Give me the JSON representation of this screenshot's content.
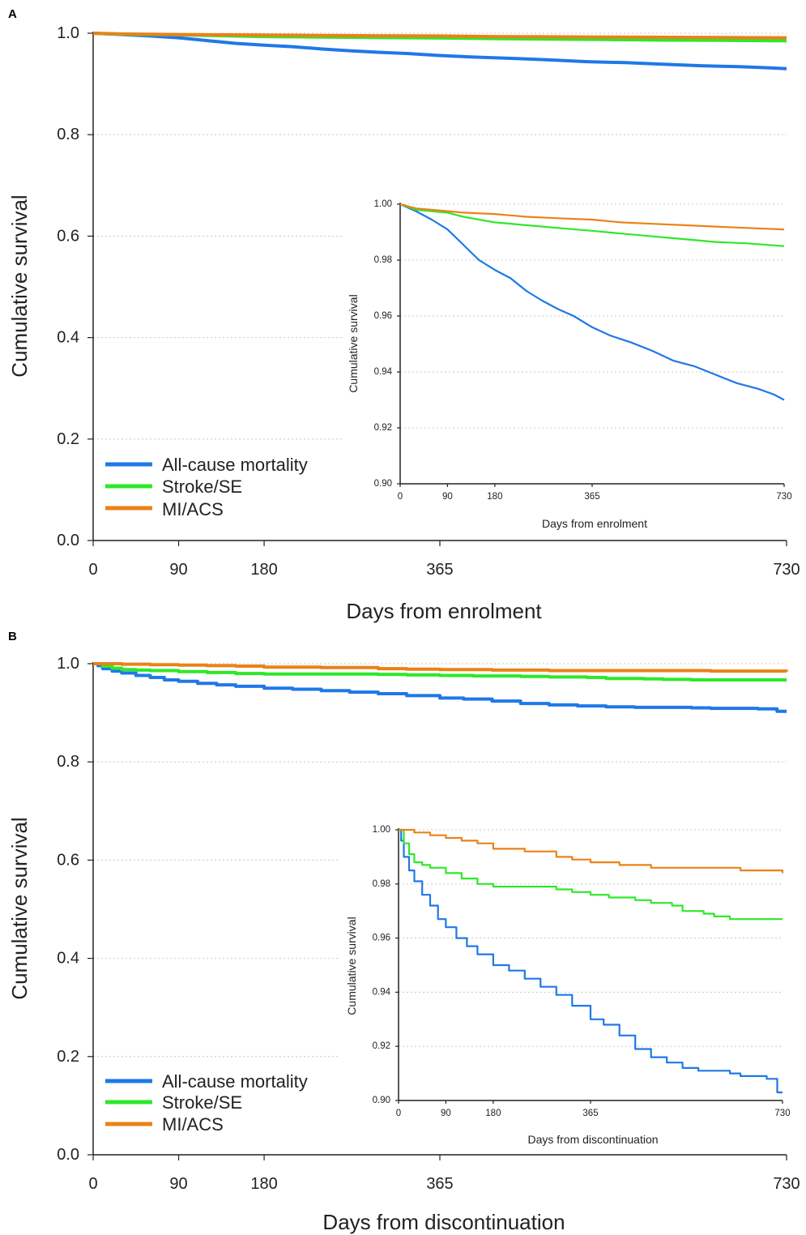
{
  "colors": {
    "all_cause_mortality": "#1f78e8",
    "stroke_se": "#2ee82a",
    "mi_acs": "#ea8218",
    "grid": "#c8c8c8",
    "axis": "#222222"
  },
  "chart_data": [
    {
      "panel": "A",
      "type": "line",
      "xlabel": "Days from enrolment",
      "ylabel": "Cumulative survival",
      "xticks": [
        0,
        90,
        180,
        365,
        730
      ],
      "yticks": [
        "0.0",
        "0.2",
        "0.4",
        "0.6",
        "0.8",
        "1.0"
      ],
      "xlim": [
        0,
        730
      ],
      "ylim": [
        0,
        1
      ],
      "grid": "horizontal dotted",
      "legend_position": "bottom-left",
      "legend": [
        "All-cause mortality",
        "Stroke/SE",
        "MI/ACS"
      ],
      "series": [
        {
          "name": "All-cause mortality",
          "x": [
            0,
            30,
            60,
            90,
            120,
            150,
            180,
            210,
            240,
            270,
            300,
            330,
            365,
            400,
            440,
            480,
            520,
            560,
            600,
            640,
            680,
            710,
            730
          ],
          "y": [
            1.0,
            0.9975,
            0.9945,
            0.991,
            0.9855,
            0.98,
            0.9765,
            0.9735,
            0.969,
            0.9655,
            0.9625,
            0.96,
            0.956,
            0.953,
            0.9505,
            0.9475,
            0.944,
            0.942,
            0.939,
            0.936,
            0.934,
            0.932,
            0.93
          ]
        },
        {
          "name": "Stroke/SE",
          "x": [
            0,
            30,
            60,
            90,
            120,
            180,
            240,
            300,
            365,
            420,
            480,
            540,
            600,
            660,
            730
          ],
          "y": [
            1.0,
            0.998,
            0.9975,
            0.997,
            0.9955,
            0.9935,
            0.9925,
            0.9915,
            0.9905,
            0.9895,
            0.9885,
            0.9875,
            0.9865,
            0.986,
            0.985
          ]
        },
        {
          "name": "MI/ACS",
          "x": [
            0,
            30,
            60,
            90,
            120,
            180,
            240,
            300,
            365,
            420,
            480,
            540,
            600,
            660,
            730
          ],
          "y": [
            1.0,
            0.9985,
            0.998,
            0.9975,
            0.997,
            0.9965,
            0.9955,
            0.995,
            0.9945,
            0.9935,
            0.993,
            0.9925,
            0.992,
            0.9915,
            0.991
          ]
        }
      ],
      "inset": {
        "xlabel": "Days from enrolment",
        "ylabel": "Cumulative survival",
        "xticks": [
          0,
          90,
          180,
          365,
          730
        ],
        "yticks": [
          "0.90",
          "0.92",
          "0.94",
          "0.96",
          "0.98",
          "1.00"
        ],
        "xlim": [
          0,
          730
        ],
        "ylim": [
          0.9,
          1.0
        ]
      }
    },
    {
      "panel": "B",
      "type": "line",
      "xlabel": "Days from discontinuation",
      "ylabel": "Cumulative survival",
      "xticks": [
        0,
        90,
        180,
        365,
        730
      ],
      "yticks": [
        "0.0",
        "0.2",
        "0.4",
        "0.6",
        "0.8",
        "1.0"
      ],
      "xlim": [
        0,
        730
      ],
      "ylim": [
        0,
        1
      ],
      "grid": "horizontal dotted",
      "legend_position": "bottom-left",
      "legend": [
        "All-cause mortality",
        "Stroke/SE",
        "MI/ACS"
      ],
      "series": [
        {
          "name": "All-cause mortality",
          "x": [
            0,
            5,
            10,
            20,
            30,
            45,
            60,
            75,
            90,
            110,
            130,
            150,
            180,
            210,
            240,
            270,
            300,
            330,
            365,
            390,
            420,
            450,
            480,
            510,
            540,
            570,
            600,
            630,
            650,
            680,
            700,
            715,
            720,
            730
          ],
          "y": [
            1.0,
            0.996,
            0.99,
            0.985,
            0.981,
            0.976,
            0.972,
            0.967,
            0.964,
            0.96,
            0.957,
            0.954,
            0.95,
            0.948,
            0.945,
            0.942,
            0.939,
            0.935,
            0.93,
            0.928,
            0.924,
            0.919,
            0.916,
            0.914,
            0.912,
            0.911,
            0.911,
            0.91,
            0.909,
            0.909,
            0.908,
            0.908,
            0.903,
            0.903
          ]
        },
        {
          "name": "Stroke/SE",
          "x": [
            0,
            10,
            20,
            30,
            45,
            60,
            90,
            120,
            150,
            180,
            240,
            300,
            330,
            365,
            400,
            450,
            480,
            500,
            520,
            540,
            560,
            580,
            600,
            630,
            700,
            730
          ],
          "y": [
            1.0,
            0.995,
            0.991,
            0.988,
            0.987,
            0.986,
            0.984,
            0.982,
            0.98,
            0.979,
            0.979,
            0.978,
            0.977,
            0.976,
            0.975,
            0.974,
            0.973,
            0.973,
            0.972,
            0.97,
            0.97,
            0.969,
            0.968,
            0.967,
            0.967,
            0.967
          ]
        },
        {
          "name": "MI/ACS",
          "x": [
            0,
            30,
            60,
            90,
            120,
            150,
            180,
            240,
            300,
            330,
            365,
            420,
            480,
            540,
            600,
            650,
            700,
            730
          ],
          "y": [
            1.0,
            0.999,
            0.998,
            0.997,
            0.996,
            0.995,
            0.993,
            0.992,
            0.99,
            0.989,
            0.988,
            0.987,
            0.986,
            0.986,
            0.986,
            0.985,
            0.985,
            0.984
          ]
        }
      ],
      "inset": {
        "xlabel": "Days from discontinuation",
        "ylabel": "Cumulative survival",
        "xticks": [
          0,
          90,
          180,
          365,
          730
        ],
        "yticks": [
          "0.90",
          "0.92",
          "0.94",
          "0.96",
          "0.98",
          "1.00"
        ],
        "xlim": [
          0,
          730
        ],
        "ylim": [
          0.9,
          1.0
        ]
      }
    }
  ]
}
